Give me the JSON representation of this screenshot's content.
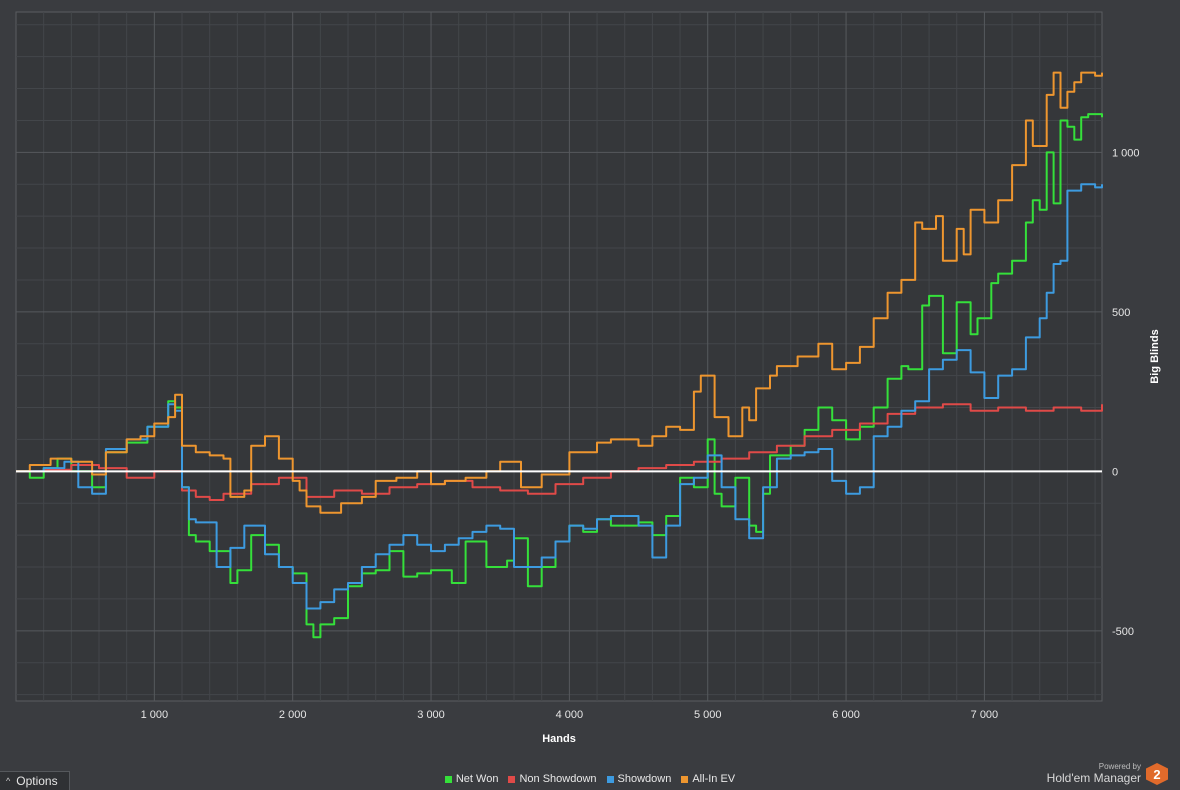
{
  "chart_data": {
    "type": "line",
    "xlabel": "Hands",
    "ylabel": "Big Blinds",
    "xlim": [
      0,
      7850
    ],
    "ylim": [
      -720,
      1440
    ],
    "x_ticks": [
      1000,
      2000,
      3000,
      4000,
      5000,
      6000,
      7000
    ],
    "x_tick_labels": [
      "1 000",
      "2 000",
      "3 000",
      "4 000",
      "5 000",
      "6 000",
      "7 000"
    ],
    "y_ticks": [
      -500,
      0,
      500,
      1000
    ],
    "y_tick_labels": [
      "-500",
      "0",
      "500",
      "1 000"
    ],
    "grid": true,
    "zero_line": true,
    "legend_position": "bottom",
    "series": [
      {
        "name": "Net Won",
        "color": "#35e03a",
        "x": [
          0,
          100,
          200,
          300,
          400,
          550,
          650,
          800,
          950,
          1100,
          1150,
          1200,
          1250,
          1300,
          1400,
          1550,
          1600,
          1700,
          1800,
          1900,
          2000,
          2100,
          2150,
          2200,
          2300,
          2400,
          2500,
          2600,
          2700,
          2800,
          2900,
          3000,
          3150,
          3250,
          3400,
          3550,
          3600,
          3700,
          3800,
          3900,
          4000,
          4100,
          4200,
          4300,
          4500,
          4600,
          4700,
          4800,
          4900,
          5000,
          5050,
          5100,
          5200,
          5300,
          5350,
          5400,
          5450,
          5600,
          5700,
          5800,
          5900,
          6000,
          6100,
          6200,
          6300,
          6400,
          6450,
          6550,
          6600,
          6700,
          6800,
          6900,
          6950,
          7050,
          7100,
          7200,
          7300,
          7350,
          7400,
          7450,
          7500,
          7550,
          7600,
          7650,
          7700,
          7750,
          7850
        ],
        "y": [
          0,
          -20,
          10,
          40,
          0,
          -50,
          60,
          90,
          140,
          220,
          200,
          -50,
          -200,
          -220,
          -250,
          -350,
          -310,
          -200,
          -230,
          -300,
          -320,
          -480,
          -520,
          -480,
          -460,
          -360,
          -320,
          -310,
          -250,
          -330,
          -320,
          -310,
          -350,
          -220,
          -300,
          -280,
          -210,
          -360,
          -300,
          -220,
          -170,
          -190,
          -150,
          -170,
          -160,
          -200,
          -140,
          -20,
          -50,
          100,
          -70,
          -110,
          -20,
          -170,
          -190,
          -70,
          50,
          80,
          130,
          200,
          160,
          100,
          140,
          200,
          290,
          330,
          320,
          520,
          550,
          370,
          530,
          430,
          480,
          590,
          620,
          660,
          780,
          850,
          820,
          1000,
          840,
          1100,
          1080,
          1040,
          1110,
          1120,
          1110
        ]
      },
      {
        "name": "Non Showdown",
        "color": "#e04a48",
        "x": [
          0,
          200,
          400,
          600,
          800,
          1000,
          1200,
          1300,
          1400,
          1500,
          1700,
          1900,
          2100,
          2300,
          2500,
          2700,
          2900,
          3100,
          3300,
          3500,
          3700,
          3900,
          4100,
          4300,
          4500,
          4700,
          4900,
          5100,
          5300,
          5500,
          5700,
          5900,
          6100,
          6300,
          6500,
          6700,
          6900,
          7100,
          7300,
          7500,
          7700,
          7850
        ],
        "y": [
          0,
          5,
          20,
          10,
          -20,
          0,
          -60,
          -80,
          -90,
          -70,
          -40,
          -20,
          -80,
          -60,
          -70,
          -50,
          -40,
          -30,
          -50,
          -60,
          -70,
          -40,
          -20,
          0,
          10,
          20,
          30,
          40,
          60,
          80,
          110,
          130,
          150,
          180,
          200,
          210,
          190,
          200,
          190,
          200,
          190,
          210
        ]
      },
      {
        "name": "Showdown",
        "color": "#3d9be0",
        "x": [
          0,
          200,
          350,
          450,
          550,
          650,
          800,
          950,
          1100,
          1150,
          1200,
          1250,
          1300,
          1450,
          1550,
          1650,
          1800,
          1900,
          2000,
          2100,
          2200,
          2300,
          2400,
          2500,
          2600,
          2700,
          2800,
          2900,
          3000,
          3100,
          3200,
          3300,
          3400,
          3500,
          3600,
          3700,
          3800,
          3900,
          4000,
          4100,
          4200,
          4300,
          4500,
          4600,
          4700,
          4800,
          4900,
          5000,
          5100,
          5200,
          5300,
          5400,
          5500,
          5600,
          5700,
          5800,
          5900,
          6000,
          6100,
          6200,
          6300,
          6400,
          6500,
          6600,
          6700,
          6800,
          6900,
          7000,
          7100,
          7200,
          7300,
          7400,
          7450,
          7500,
          7550,
          7600,
          7700,
          7800,
          7850
        ],
        "y": [
          0,
          10,
          30,
          -50,
          -70,
          70,
          100,
          140,
          210,
          190,
          -50,
          -150,
          -160,
          -300,
          -240,
          -170,
          -260,
          -300,
          -350,
          -430,
          -410,
          -370,
          -350,
          -300,
          -260,
          -230,
          -200,
          -230,
          -250,
          -230,
          -210,
          -190,
          -170,
          -180,
          -300,
          -300,
          -270,
          -220,
          -170,
          -180,
          -150,
          -140,
          -170,
          -270,
          -170,
          -40,
          -20,
          50,
          -50,
          -150,
          -210,
          -50,
          40,
          50,
          60,
          70,
          -30,
          -70,
          -50,
          110,
          140,
          190,
          220,
          320,
          350,
          380,
          310,
          230,
          300,
          320,
          420,
          480,
          560,
          650,
          660,
          880,
          900,
          890,
          900
        ]
      },
      {
        "name": "All-In EV",
        "color": "#ee962f",
        "x": [
          0,
          100,
          250,
          400,
          550,
          650,
          800,
          900,
          1000,
          1100,
          1150,
          1200,
          1300,
          1400,
          1500,
          1550,
          1650,
          1700,
          1800,
          1900,
          2000,
          2050,
          2100,
          2200,
          2350,
          2500,
          2600,
          2750,
          2900,
          3000,
          3100,
          3250,
          3400,
          3500,
          3650,
          3800,
          4000,
          4200,
          4300,
          4500,
          4600,
          4700,
          4800,
          4900,
          4950,
          5050,
          5150,
          5250,
          5300,
          5350,
          5450,
          5500,
          5650,
          5800,
          5900,
          6000,
          6100,
          6200,
          6300,
          6400,
          6500,
          6550,
          6650,
          6700,
          6800,
          6850,
          6900,
          7000,
          7100,
          7200,
          7300,
          7350,
          7450,
          7500,
          7550,
          7600,
          7650,
          7700,
          7800,
          7850
        ],
        "y": [
          0,
          20,
          40,
          30,
          -10,
          60,
          100,
          110,
          150,
          170,
          240,
          80,
          60,
          50,
          40,
          -80,
          -60,
          80,
          110,
          40,
          -30,
          -60,
          -110,
          -130,
          -100,
          -80,
          -30,
          -20,
          0,
          -40,
          -30,
          -20,
          0,
          30,
          -50,
          -10,
          60,
          90,
          100,
          80,
          110,
          140,
          130,
          250,
          300,
          170,
          110,
          200,
          160,
          260,
          300,
          330,
          360,
          400,
          320,
          340,
          390,
          480,
          560,
          600,
          780,
          760,
          800,
          660,
          760,
          680,
          820,
          780,
          850,
          960,
          1100,
          1020,
          1180,
          1250,
          1140,
          1190,
          1220,
          1250,
          1240,
          1250
        ]
      }
    ]
  },
  "legend": {
    "items": [
      {
        "label": "Net Won",
        "color": "#35e03a"
      },
      {
        "label": "Non Showdown",
        "color": "#e04a48"
      },
      {
        "label": "Showdown",
        "color": "#3d9be0"
      },
      {
        "label": "All-In EV",
        "color": "#ee962f"
      }
    ]
  },
  "options_button": {
    "label": "Options",
    "icon": "chevron-up-icon"
  },
  "branding": {
    "powered_by": "Powered by",
    "name": "Hold'em Manager",
    "logo_text": "2"
  }
}
